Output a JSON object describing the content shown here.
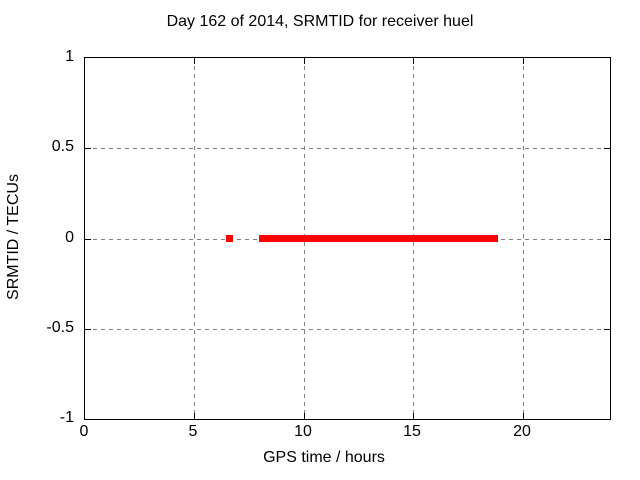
{
  "chart_data": {
    "type": "scatter",
    "title": "Day 162 of 2014, SRMTID for receiver huel",
    "xlabel": "GPS time / hours",
    "ylabel": "SRMTID / TECUs",
    "xlim": [
      0,
      24
    ],
    "ylim": [
      -1,
      1
    ],
    "xticks": [
      0,
      5,
      10,
      15,
      20
    ],
    "xtick_labels": [
      "0",
      "5",
      "10",
      "15",
      "20"
    ],
    "yticks": [
      1,
      0.5,
      0,
      -0.5,
      -1
    ],
    "ytick_labels": [
      "1",
      "0.5",
      "0",
      "-0.5",
      "-1"
    ],
    "grid": true,
    "legend": "none",
    "marker": "plus",
    "colors": {
      "series": "#ff0000",
      "grid": "#808080",
      "border": "#000000",
      "text": "#000000",
      "background": "#ffffff"
    },
    "series": [
      {
        "name": "SRMTID",
        "color": "#ff0000",
        "points": [
          {
            "x": 6.6,
            "y": 0
          },
          {
            "x": 18.7,
            "y": 0
          }
        ],
        "dense_runs": [
          {
            "x_start": 7.95,
            "x_end": 18.55,
            "y": 0
          }
        ]
      }
    ]
  }
}
